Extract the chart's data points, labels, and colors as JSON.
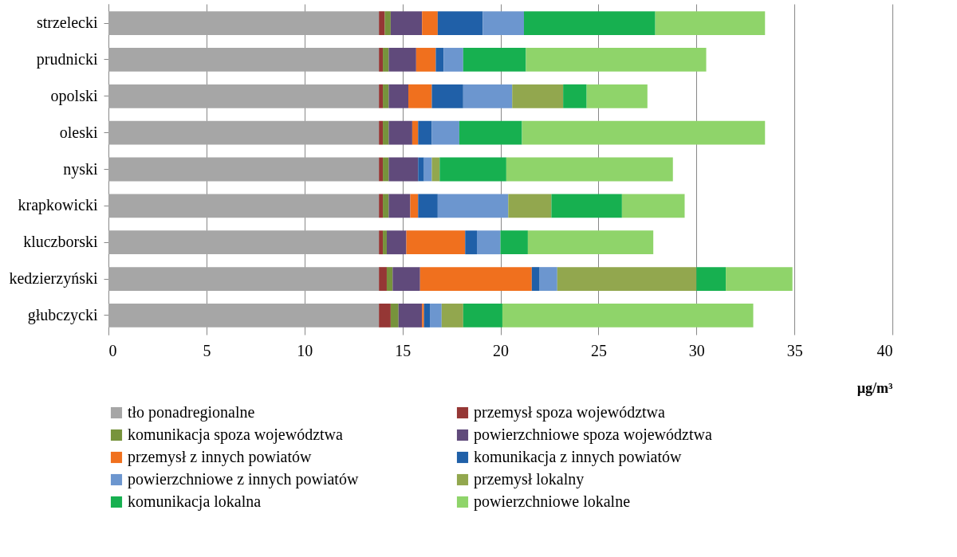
{
  "chart_data": {
    "type": "bar",
    "orientation": "horizontal",
    "stacked": true,
    "xlabel": "µg/m³",
    "categories": [
      "strzelecki",
      "prudnicki",
      "opolski",
      "oleski",
      "nyski",
      "krapkowicki",
      "kluczborski",
      "kedzierzyński",
      "głubczycki"
    ],
    "series": [
      {
        "name": "tło ponadregionalne",
        "color": "#a6a6a6",
        "values": [
          13.8,
          13.8,
          13.8,
          13.8,
          13.8,
          13.8,
          13.8,
          13.8,
          13.8
        ]
      },
      {
        "name": "przemysł spoza województwa",
        "color": "#953735",
        "values": [
          0.3,
          0.2,
          0.2,
          0.2,
          0.2,
          0.2,
          0.2,
          0.4,
          0.6
        ]
      },
      {
        "name": "komunikacja spoza województwa",
        "color": "#77933c",
        "values": [
          0.3,
          0.3,
          0.3,
          0.3,
          0.3,
          0.3,
          0.2,
          0.3,
          0.4
        ]
      },
      {
        "name": "powierzchniowe spoza województwa",
        "color": "#604a7b",
        "values": [
          1.6,
          1.4,
          1.0,
          1.2,
          1.5,
          1.1,
          1.0,
          1.4,
          1.2
        ]
      },
      {
        "name": "przemysł z innych powiatów",
        "color": "#f0701e",
        "values": [
          0.8,
          1.0,
          1.2,
          0.3,
          0,
          0.4,
          3.0,
          5.7,
          0.1
        ]
      },
      {
        "name": "komunikacja z innych powiatów",
        "color": "#2060a8",
        "values": [
          2.3,
          0.4,
          1.6,
          0.7,
          0.3,
          1.0,
          0.6,
          0.4,
          0.3
        ]
      },
      {
        "name": "powierzchniowe z innych powiatów",
        "color": "#6c96cf",
        "values": [
          2.1,
          1.0,
          2.5,
          1.4,
          0.4,
          3.6,
          1.2,
          0.9,
          0.6
        ]
      },
      {
        "name": "przemysł lokalny",
        "color": "#92a74e",
        "values": [
          0,
          0,
          2.6,
          0,
          0.4,
          2.2,
          0,
          7.1,
          1.1
        ]
      },
      {
        "name": "komunikacja lokalna",
        "color": "#17b050",
        "values": [
          6.7,
          3.2,
          1.2,
          3.2,
          3.4,
          3.6,
          1.4,
          1.5,
          2.0
        ]
      },
      {
        "name": "powierzchniowe lokalne",
        "color": "#8fd46a",
        "values": [
          5.6,
          9.2,
          3.1,
          12.4,
          8.5,
          3.2,
          6.4,
          3.4,
          12.8
        ]
      }
    ],
    "xlim": [
      0,
      40
    ],
    "xticks": [
      0,
      5,
      10,
      15,
      20,
      25,
      30,
      35,
      40
    ],
    "grid": "x",
    "legend": "bottom"
  }
}
